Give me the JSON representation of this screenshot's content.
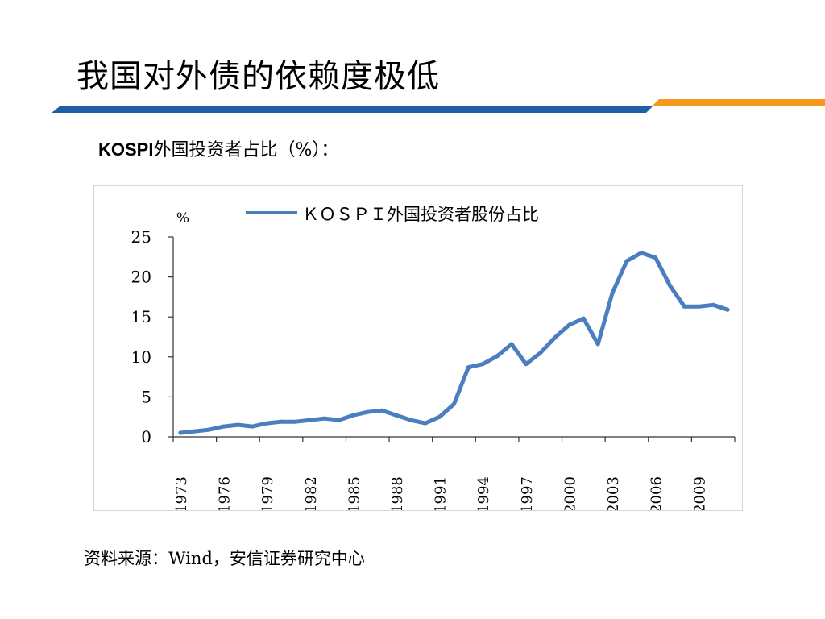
{
  "slide": {
    "title": "我国对外债的依赖度极低",
    "subtitle_latin": "KOSPI",
    "subtitle_rest": "外国投资者占比（%）：",
    "source": "资料来源：Wind，安信证券研究中心"
  },
  "colors": {
    "title_bar_blue": "#1f5fa8",
    "title_bar_orange": "#f39a1e",
    "line": "#4a7ebf"
  },
  "chart_data": {
    "type": "line",
    "title": "",
    "ylabel": "%",
    "xlabel": "",
    "ylim": [
      0,
      25
    ],
    "yticks": [
      "0",
      "5",
      "10",
      "15",
      "20",
      "25"
    ],
    "x_tick_labels": [
      "1973",
      "1976",
      "1979",
      "1982",
      "1985",
      "1988",
      "1991",
      "1994",
      "1997",
      "2000",
      "2003",
      "2006",
      "2009"
    ],
    "legend_position": "top",
    "grid": false,
    "series": [
      {
        "name": "ＫＯＳＰＩ外国投资者股份占比",
        "x": [
          1973,
          1974,
          1975,
          1976,
          1977,
          1978,
          1979,
          1980,
          1981,
          1982,
          1983,
          1984,
          1985,
          1986,
          1987,
          1988,
          1989,
          1990,
          1991,
          1992,
          1993,
          1994,
          1995,
          1996,
          1997,
          1998,
          1999,
          2000,
          2001,
          2002,
          2003,
          2004,
          2005,
          2006,
          2007,
          2008,
          2009,
          2010,
          2011
        ],
        "values": [
          0.5,
          0.7,
          0.9,
          1.3,
          1.5,
          1.3,
          1.7,
          1.9,
          1.9,
          2.1,
          2.3,
          2.1,
          2.7,
          3.1,
          3.3,
          2.7,
          2.1,
          1.7,
          2.5,
          4.1,
          8.7,
          9.1,
          10.1,
          11.6,
          9.1,
          10.5,
          12.4,
          14.0,
          14.8,
          11.6,
          18.0,
          22.0,
          23.0,
          22.4,
          18.9,
          16.3,
          16.3,
          16.5,
          15.9
        ]
      }
    ]
  }
}
